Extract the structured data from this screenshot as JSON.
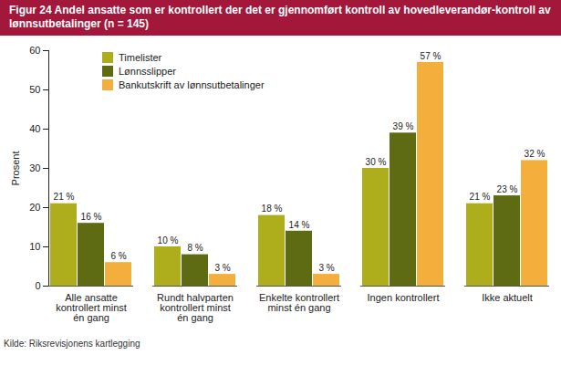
{
  "chart_data": {
    "type": "bar",
    "title": "Figur 24 Andel ansatte som er kontrollert der det er gjennomført kontroll av hovedleverandør-kontroll av lønnsutbetalinger (n = 145)",
    "source": "Kilde: Riksrevisjonens kartlegging",
    "y_label": "Prosent",
    "categories": [
      "Alle ansatte kontrollert minst én gang",
      "Rundt halvparten kontrollert minst én gang",
      "Enkelte kontrollert minst én gang",
      "Ingen kontrollert",
      "Ikke aktuelt"
    ],
    "series": [
      {
        "name": "Timelister",
        "color": "#aeae1c",
        "values": [
          21,
          10,
          18,
          30,
          21
        ],
        "value_labels": [
          "21 %",
          "10 %",
          "18 %",
          "30 %",
          "21 %"
        ]
      },
      {
        "name": "Lønnsslipper",
        "color": "#5e6b12",
        "values": [
          16,
          8,
          14,
          39,
          23
        ],
        "value_labels": [
          "16 %",
          "8 %",
          "14 %",
          "39 %",
          "23 %"
        ]
      },
      {
        "name": "Bankutskrift av lønnsutbetalinger",
        "color": "#f4ae3c",
        "values": [
          6,
          3,
          3,
          57,
          32
        ],
        "value_labels": [
          "6 %",
          "3 %",
          "3 %",
          "57 %",
          "32 %"
        ]
      }
    ],
    "ylim": [
      0,
      60
    ],
    "yticks": [
      0,
      10,
      20,
      30,
      40,
      50,
      60
    ],
    "grid": false,
    "legend": "top-left",
    "data_labels": true
  }
}
